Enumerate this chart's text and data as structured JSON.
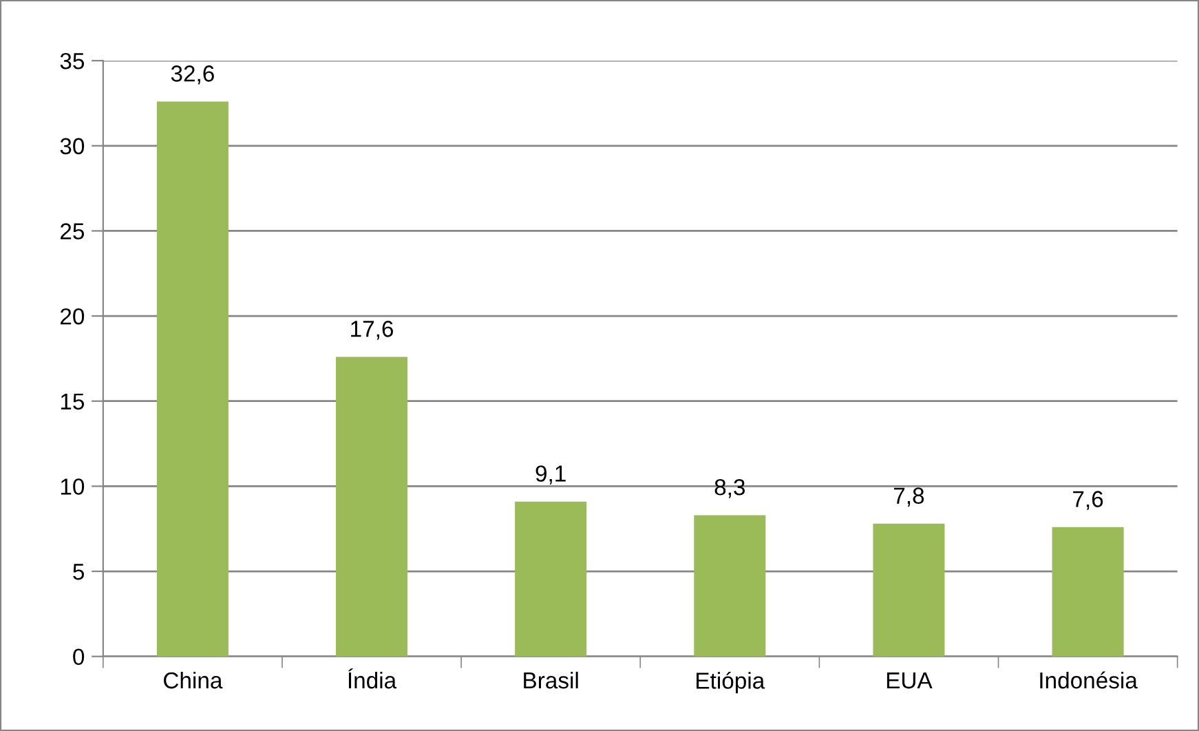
{
  "chart_data": {
    "type": "bar",
    "categories": [
      "China",
      "Índia",
      "Brasil",
      "Etiópia",
      "EUA",
      "Indonésia"
    ],
    "values": [
      32.6,
      17.6,
      9.1,
      8.3,
      7.8,
      7.6
    ],
    "value_labels": [
      "32,6",
      "17,6",
      "9,1",
      "8,3",
      "7,8",
      "7,6"
    ],
    "color": "#9bbb59",
    "ylim": [
      0,
      35
    ],
    "yticks": [
      0,
      5,
      10,
      15,
      20,
      25,
      30,
      35
    ],
    "grid": "y",
    "legend": false
  }
}
